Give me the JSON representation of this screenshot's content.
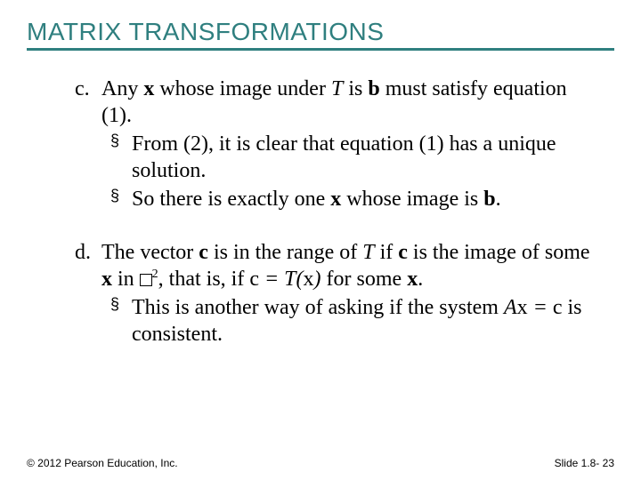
{
  "title": "MATRIX TRANSFORMATIONS",
  "title_color": "#2f7f7f",
  "underline_color": "#2f7f7f",
  "title_fontsize": 28,
  "body_fontsize": 24,
  "footer_fontsize": 12,
  "items": [
    {
      "label": "c.",
      "text_html": "Any <b>x</b> whose image under <i>T</i> is <b>b</b> must satisfy equation (1).",
      "subs": [
        {
          "text_html": "From (2), it is clear that equation (1) has a unique solution."
        },
        {
          "text_html": "So there is exactly one <b>x</b> whose image is <b>b</b>."
        }
      ]
    },
    {
      "label": "d.",
      "text_html": "The vector <b>c</b> is in the range of <i>T</i> if <b>c</b> is the image of some <b>x</b> in <span class=\"box\"></span><span class=\"sup\">2</span>, that is, if <span class=\"eq\"><span class=\"up\">c</span> = T(<span class=\"up\">x</span>)</span> for some <b>x</b>.",
      "subs": [
        {
          "text_html": "This is another way of asking if the system <span class=\"eq\">A<span class=\"up\">x</span> = <span class=\"up\">c</span></span> is consistent."
        }
      ]
    }
  ],
  "footer": {
    "left": "© 2012 Pearson Education, Inc.",
    "right": "Slide 1.8- 23"
  },
  "bullet_glyph": "§"
}
